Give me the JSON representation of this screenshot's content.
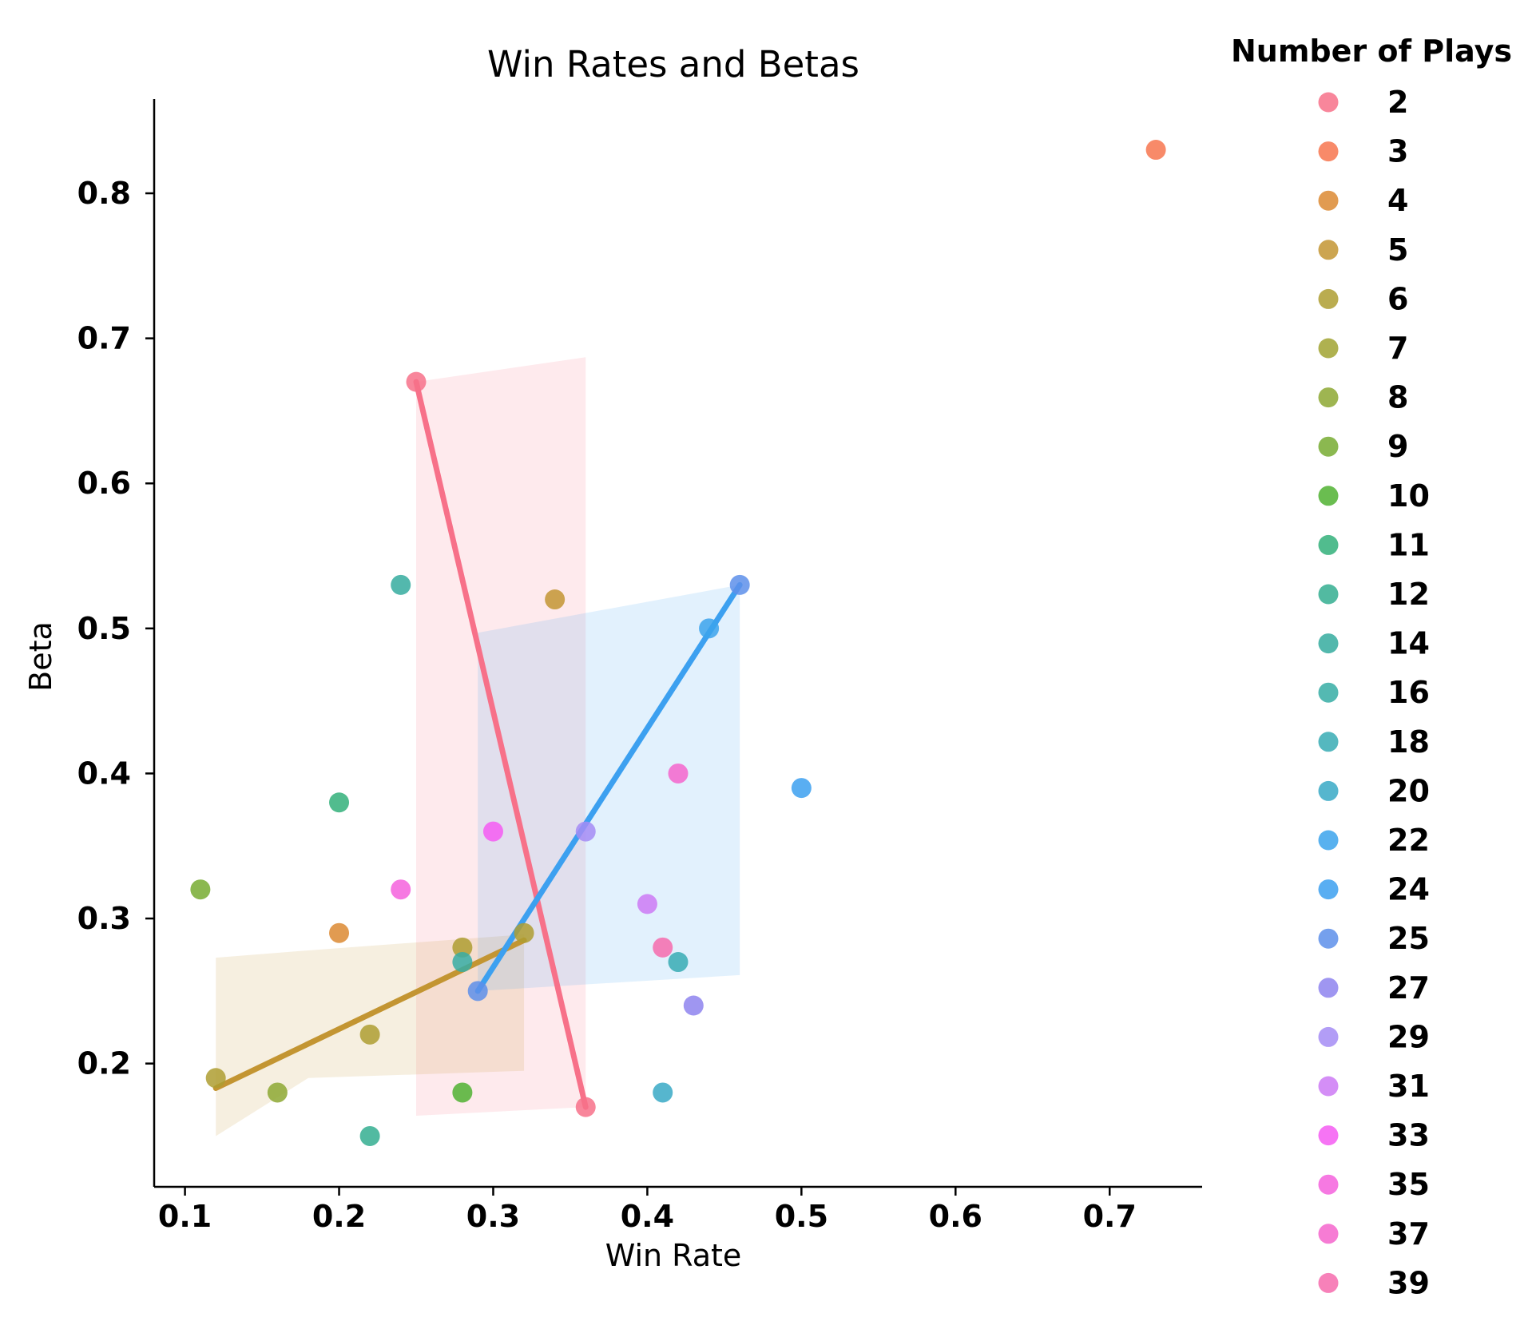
{
  "chart_data": {
    "type": "scatter",
    "title": "Win Rates and Betas",
    "xlabel": "Win Rate",
    "ylabel": "Beta",
    "xlim": [
      0.08,
      0.76
    ],
    "ylim": [
      0.115,
      0.865
    ],
    "xticks": [
      "0.1",
      "0.2",
      "0.3",
      "0.4",
      "0.5",
      "0.6",
      "0.7"
    ],
    "yticks": [
      "0.2",
      "0.3",
      "0.4",
      "0.5",
      "0.6",
      "0.7",
      "0.8"
    ],
    "grid": false,
    "legend": {
      "title": "Number of Plays",
      "placement": "outside-right",
      "entries": [
        {
          "label": "2",
          "color": "#f77189"
        },
        {
          "label": "3",
          "color": "#f7754f"
        },
        {
          "label": "4",
          "color": "#dc8932"
        },
        {
          "label": "5",
          "color": "#c39532"
        },
        {
          "label": "6",
          "color": "#ae9d31"
        },
        {
          "label": "7",
          "color": "#a1a331"
        },
        {
          "label": "8",
          "color": "#8da832"
        },
        {
          "label": "9",
          "color": "#77ab31"
        },
        {
          "label": "10",
          "color": "#50b131"
        },
        {
          "label": "11",
          "color": "#33b07a"
        },
        {
          "label": "12",
          "color": "#34ae91"
        },
        {
          "label": "14",
          "color": "#35ac9f"
        },
        {
          "label": "16",
          "color": "#36ada4"
        },
        {
          "label": "18",
          "color": "#37abb4"
        },
        {
          "label": "20",
          "color": "#38a9c5"
        },
        {
          "label": "22",
          "color": "#3ba3ec"
        },
        {
          "label": "24",
          "color": "#3ca0f0"
        },
        {
          "label": "25",
          "color": "#5d8fea"
        },
        {
          "label": "27",
          "color": "#8e84ee"
        },
        {
          "label": "29",
          "color": "#a48cf4"
        },
        {
          "label": "31",
          "color": "#cc7af4"
        },
        {
          "label": "33",
          "color": "#f45cf2"
        },
        {
          "label": "35",
          "color": "#f461dd"
        },
        {
          "label": "37",
          "color": "#f565cc"
        },
        {
          "label": "39",
          "color": "#f66bad"
        }
      ]
    },
    "points": [
      {
        "group": "2",
        "x": 0.25,
        "y": 0.67
      },
      {
        "group": "2",
        "x": 0.36,
        "y": 0.17
      },
      {
        "group": "3",
        "x": 0.73,
        "y": 0.83
      },
      {
        "group": "4",
        "x": 0.2,
        "y": 0.29
      },
      {
        "group": "5",
        "x": 0.34,
        "y": 0.52
      },
      {
        "group": "6",
        "x": 0.12,
        "y": 0.19
      },
      {
        "group": "6",
        "x": 0.22,
        "y": 0.22
      },
      {
        "group": "6",
        "x": 0.28,
        "y": 0.28
      },
      {
        "group": "6",
        "x": 0.32,
        "y": 0.29
      },
      {
        "group": "8",
        "x": 0.16,
        "y": 0.18
      },
      {
        "group": "9",
        "x": 0.11,
        "y": 0.32
      },
      {
        "group": "10",
        "x": 0.28,
        "y": 0.18
      },
      {
        "group": "11",
        "x": 0.2,
        "y": 0.38
      },
      {
        "group": "12",
        "x": 0.22,
        "y": 0.15
      },
      {
        "group": "14",
        "x": 0.24,
        "y": 0.53
      },
      {
        "group": "16",
        "x": 0.28,
        "y": 0.27
      },
      {
        "group": "18",
        "x": 0.42,
        "y": 0.27
      },
      {
        "group": "20",
        "x": 0.41,
        "y": 0.18
      },
      {
        "group": "22",
        "x": 0.44,
        "y": 0.5
      },
      {
        "group": "24",
        "x": 0.5,
        "y": 0.39
      },
      {
        "group": "25",
        "x": 0.29,
        "y": 0.25
      },
      {
        "group": "25",
        "x": 0.46,
        "y": 0.53
      },
      {
        "group": "27",
        "x": 0.43,
        "y": 0.24
      },
      {
        "group": "29",
        "x": 0.36,
        "y": 0.36
      },
      {
        "group": "31",
        "x": 0.4,
        "y": 0.31
      },
      {
        "group": "33",
        "x": 0.3,
        "y": 0.36
      },
      {
        "group": "35",
        "x": 0.24,
        "y": 0.32
      },
      {
        "group": "37",
        "x": 0.42,
        "y": 0.4
      },
      {
        "group": "39",
        "x": 0.41,
        "y": 0.28
      }
    ],
    "regressions": [
      {
        "group": "2",
        "color": "#f77189",
        "line": [
          [
            0.25,
            0.67
          ],
          [
            0.36,
            0.17
          ]
        ],
        "band": {
          "x": [
            0.25,
            0.36
          ],
          "upper": [
            0.67,
            0.687
          ],
          "lower": [
            0.164,
            0.17
          ]
        }
      },
      {
        "group": "6",
        "color": "#c39532",
        "line": [
          [
            0.12,
            0.183
          ],
          [
            0.32,
            0.285
          ]
        ],
        "band": {
          "x": [
            0.12,
            0.18,
            0.32
          ],
          "upper": [
            0.273,
            0.278,
            0.289
          ],
          "lower": [
            0.15,
            0.19,
            0.195
          ]
        }
      },
      {
        "group": "25",
        "color": "#3ca0f0",
        "line": [
          [
            0.29,
            0.25
          ],
          [
            0.46,
            0.53
          ]
        ],
        "band": {
          "x": [
            0.29,
            0.46
          ],
          "upper": [
            0.497,
            0.53
          ],
          "lower": [
            0.25,
            0.261
          ]
        }
      }
    ]
  }
}
